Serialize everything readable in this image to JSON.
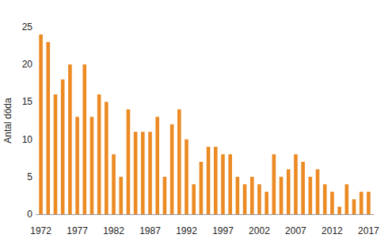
{
  "chart_data": {
    "type": "bar",
    "y_label": "Antal döda",
    "categories": [
      "1972",
      null,
      null,
      null,
      null,
      "1977",
      null,
      null,
      null,
      null,
      "1982",
      null,
      null,
      null,
      null,
      "1987",
      null,
      null,
      null,
      null,
      "1992",
      null,
      null,
      null,
      null,
      "1997",
      null,
      null,
      null,
      null,
      "2002",
      null,
      null,
      null,
      null,
      "2007",
      null,
      null,
      null,
      null,
      "2012",
      null,
      null,
      null,
      null,
      "2017"
    ],
    "values": [
      24,
      23,
      16,
      18,
      20,
      13,
      20,
      13,
      16,
      15,
      8,
      5,
      14,
      11,
      11,
      11,
      13,
      5,
      12,
      14,
      10,
      4,
      7,
      9,
      9,
      8,
      8,
      5,
      4,
      5,
      4,
      3,
      8,
      5,
      6,
      8,
      7,
      5,
      6,
      4,
      3,
      1,
      4,
      2,
      3,
      3
    ],
    "color": "#ec8a24",
    "ylim": [
      0,
      25
    ],
    "yticks": [
      0,
      5,
      10,
      15,
      20,
      25
    ],
    "grid": false
  }
}
